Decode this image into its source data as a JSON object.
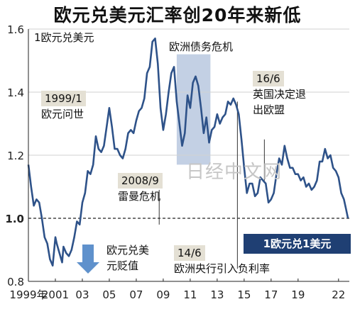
{
  "title": "欧元兑美元汇率创20年来新低",
  "watermark": "日经中文网",
  "colors": {
    "line": "#2e5289",
    "band": "#b9c8df",
    "badge": "#1f3f73",
    "arrow": "#5f91cc",
    "tag": "#e4e0d4"
  },
  "annotations": {
    "euro_launch": {
      "date": "1999/1",
      "text": "欧元问世"
    },
    "lehman": {
      "date": "2008/9",
      "text": "雷曼危机"
    },
    "debt_crisis": "欧洲债务危机",
    "brexit": {
      "date": "16/6",
      "line1": "英国决定退",
      "line2": "出欧盟"
    },
    "negative_rate": {
      "date": "14/6",
      "text": "欧洲央行引入负利率"
    },
    "euro_depreciation": {
      "line1": "欧元兑美",
      "line2": "元贬值"
    },
    "parity": "1欧元兑1美元"
  },
  "chart_data": {
    "type": "line",
    "ylabel": "1欧元兑美元",
    "ylim": [
      0.8,
      1.6
    ],
    "yticks": [
      "0.8",
      "1.0",
      "1.2",
      "1.4",
      "1.6"
    ],
    "xlim": [
      1999.0,
      2022.8
    ],
    "xticks": [
      {
        "x": 1999,
        "label": "1999年"
      },
      {
        "x": 2001,
        "label": "2001"
      },
      {
        "x": 2003,
        "label": "03"
      },
      {
        "x": 2005,
        "label": "05"
      },
      {
        "x": 2007,
        "label": "07"
      },
      {
        "x": 2009,
        "label": "09"
      },
      {
        "x": 2011,
        "label": "11"
      },
      {
        "x": 2013,
        "label": "13"
      },
      {
        "x": 2015,
        "label": "15"
      },
      {
        "x": 2017,
        "label": "17"
      },
      {
        "x": 2019,
        "label": "19"
      },
      {
        "x": 2022,
        "label": "22"
      }
    ],
    "reference_line": 1.0,
    "shaded_period": [
      2010.0,
      2012.5
    ],
    "event_markers": [
      1999.0,
      2008.7,
      2014.5,
      2016.5
    ],
    "series": [
      {
        "x": [
          1999.0,
          1999.2,
          1999.4,
          1999.6,
          1999.8,
          2000.0,
          2000.2,
          2000.4,
          2000.6,
          2000.8,
          2001.0,
          2001.1,
          2001.3,
          2001.5,
          2001.6,
          2001.8,
          2002.0,
          2002.2,
          2002.4,
          2002.6,
          2002.8,
          2003.0,
          2003.2,
          2003.4,
          2003.6,
          2003.8,
          2004.0,
          2004.2,
          2004.4,
          2004.6,
          2004.8,
          2005.0,
          2005.2,
          2005.4,
          2005.6,
          2005.8,
          2006.0,
          2006.2,
          2006.4,
          2006.6,
          2006.8,
          2007.0,
          2007.2,
          2007.4,
          2007.6,
          2007.8,
          2008.0,
          2008.2,
          2008.4,
          2008.6,
          2008.8,
          2009.0,
          2009.2,
          2009.4,
          2009.6,
          2009.8,
          2010.0,
          2010.2,
          2010.4,
          2010.6,
          2010.8,
          2011.0,
          2011.2,
          2011.4,
          2011.6,
          2011.8,
          2012.0,
          2012.2,
          2012.4,
          2012.6,
          2012.8,
          2013.0,
          2013.2,
          2013.4,
          2013.6,
          2013.8,
          2014.0,
          2014.2,
          2014.4,
          2014.6,
          2014.8,
          2015.0,
          2015.2,
          2015.4,
          2015.6,
          2015.8,
          2016.0,
          2016.2,
          2016.4,
          2016.6,
          2016.8,
          2017.0,
          2017.2,
          2017.4,
          2017.6,
          2017.8,
          2018.0,
          2018.2,
          2018.4,
          2018.6,
          2018.8,
          2019.0,
          2019.2,
          2019.4,
          2019.6,
          2019.8,
          2020.0,
          2020.2,
          2020.4,
          2020.6,
          2020.8,
          2021.0,
          2021.2,
          2021.4,
          2021.6,
          2021.8,
          2022.0,
          2022.2,
          2022.4,
          2022.55,
          2022.7
        ],
        "y": [
          1.17,
          1.1,
          1.04,
          1.06,
          1.05,
          1.0,
          0.94,
          0.92,
          0.87,
          0.85,
          0.94,
          0.92,
          0.89,
          0.86,
          0.91,
          0.89,
          0.88,
          0.9,
          0.94,
          0.99,
          0.98,
          1.05,
          1.08,
          1.15,
          1.14,
          1.17,
          1.26,
          1.22,
          1.21,
          1.23,
          1.29,
          1.35,
          1.29,
          1.22,
          1.22,
          1.2,
          1.19,
          1.22,
          1.27,
          1.28,
          1.27,
          1.31,
          1.34,
          1.35,
          1.38,
          1.46,
          1.48,
          1.56,
          1.57,
          1.49,
          1.35,
          1.28,
          1.33,
          1.4,
          1.46,
          1.48,
          1.37,
          1.3,
          1.23,
          1.27,
          1.39,
          1.35,
          1.43,
          1.45,
          1.42,
          1.35,
          1.27,
          1.32,
          1.24,
          1.28,
          1.29,
          1.33,
          1.3,
          1.32,
          1.33,
          1.37,
          1.36,
          1.38,
          1.36,
          1.33,
          1.25,
          1.16,
          1.08,
          1.11,
          1.11,
          1.07,
          1.08,
          1.13,
          1.12,
          1.11,
          1.05,
          1.06,
          1.08,
          1.14,
          1.19,
          1.17,
          1.23,
          1.19,
          1.16,
          1.16,
          1.14,
          1.14,
          1.12,
          1.13,
          1.1,
          1.11,
          1.09,
          1.1,
          1.12,
          1.18,
          1.18,
          1.22,
          1.19,
          1.2,
          1.16,
          1.15,
          1.13,
          1.08,
          1.06,
          1.03,
          1.0
        ]
      }
    ]
  }
}
